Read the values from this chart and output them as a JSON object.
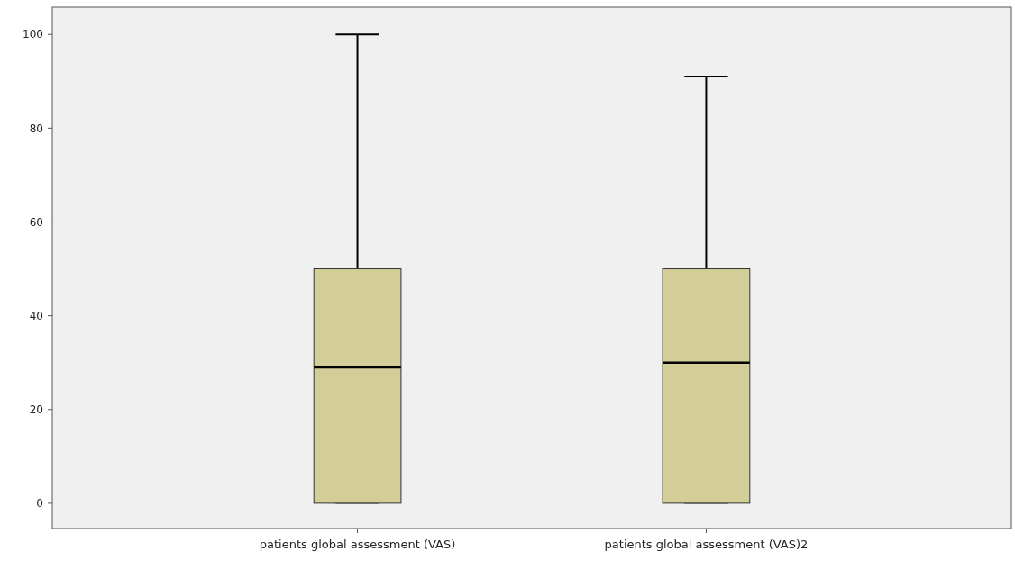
{
  "chart_data": {
    "type": "box",
    "categories": [
      "patients global assessment (VAS)",
      "patients global assessment (VAS)2"
    ],
    "boxes": [
      {
        "low": 0,
        "q1": 0,
        "median": 29,
        "q3": 50,
        "high": 100
      },
      {
        "low": 0,
        "q1": 0,
        "median": 30,
        "q3": 50,
        "high": 91
      }
    ],
    "color": "#d3ce97",
    "ylim": [
      -5.4,
      105.8
    ],
    "yticks": [
      0,
      20,
      40,
      60,
      80,
      100
    ],
    "grid": false
  }
}
